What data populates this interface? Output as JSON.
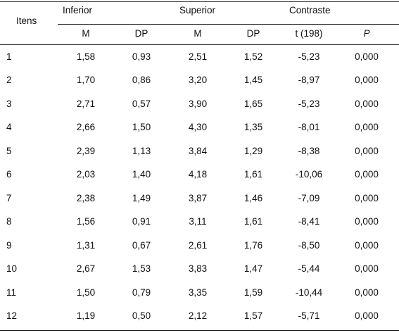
{
  "table": {
    "header": {
      "itens": "Itens",
      "groups": [
        "Inferior",
        "Superior",
        "Contraste"
      ],
      "subheaders": [
        "M",
        "DP",
        "M",
        "DP",
        "t (198)",
        "P"
      ]
    },
    "rows": [
      [
        "1",
        "1,58",
        "0,93",
        "2,51",
        "1,52",
        "-5,23",
        "0,000"
      ],
      [
        "2",
        "1,70",
        "0,86",
        "3,20",
        "1,45",
        "-8,97",
        "0,000"
      ],
      [
        "3",
        "2,71",
        "0,57",
        "3,90",
        "1,65",
        "-5,23",
        "0,000"
      ],
      [
        "4",
        "2,66",
        "1,50",
        "4,30",
        "1,35",
        "-8,01",
        "0,000"
      ],
      [
        "5",
        "2,39",
        "1,13",
        "3,84",
        "1,29",
        "-8,38",
        "0,000"
      ],
      [
        "6",
        "2,03",
        "1,40",
        "4,18",
        "1,61",
        "-10,06",
        "0,000"
      ],
      [
        "7",
        "2,38",
        "1,49",
        "3,87",
        "1,46",
        "-7,09",
        "0,000"
      ],
      [
        "8",
        "1,56",
        "0,91",
        "3,11",
        "1,61",
        "-8,41",
        "0,000"
      ],
      [
        "9",
        "1,31",
        "0,67",
        "2,61",
        "1,76",
        "-8,50",
        "0,000"
      ],
      [
        "10",
        "2,67",
        "1,53",
        "3,83",
        "1,47",
        "-5,44",
        "0,000"
      ],
      [
        "11",
        "1,50",
        "0,79",
        "3,35",
        "1,59",
        "-10,44",
        "0,000"
      ],
      [
        "12",
        "1,19",
        "0,50",
        "2,12",
        "1,57",
        "-5,71",
        "0,000"
      ]
    ]
  }
}
